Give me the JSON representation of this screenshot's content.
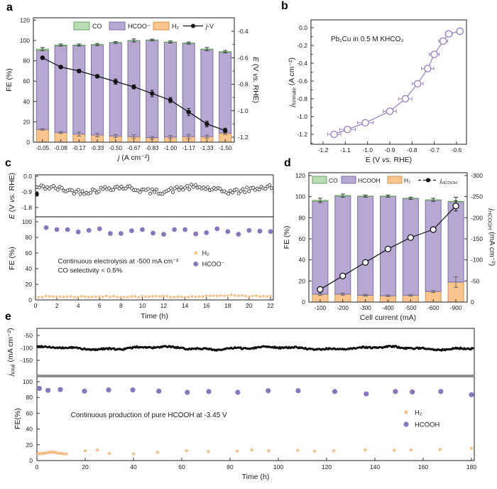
{
  "panel_labels": {
    "a": "a",
    "b": "b",
    "c": "c",
    "d": "d",
    "e": "e"
  },
  "colors": {
    "co_fill": "#b8ddb4",
    "co_edge": "#67a567",
    "formate_fill": "#b6a8d3",
    "formate_edge": "#7d6cab",
    "h2_fill": "#f9c58d",
    "h2_edge": "#d2944f",
    "black": "#141414",
    "purple_line": "#9c85c7",
    "dot_purple": "#8877bf",
    "star_fill": "#f4bc81",
    "scatter_stroke": "#3a3a3a"
  },
  "chart_data": [
    {
      "id": "a",
      "type": "bar+line",
      "categories": [
        "-0.05",
        "-0.08",
        "-0.17",
        "-0.33",
        "-0.50",
        "-0.67",
        "-0.83",
        "-1.00",
        "-1.17",
        "-1.33",
        "-1.50"
      ],
      "xlabel": "*j* (A cm⁻²)",
      "ylabel": "FE (%)",
      "ylabel_right": "*E* (V *vs.* RHE)",
      "ylim": [
        0,
        120
      ],
      "yticks": [
        "0",
        "20",
        "40",
        "60",
        "80",
        "100",
        "120"
      ],
      "yticks_right": [
        "-0.4",
        "-0.6",
        "-0.8",
        "-1.0",
        "-1.2"
      ],
      "legend": [
        "CO",
        "HCOO⁻",
        "H₂",
        "*j*-V"
      ],
      "h2": [
        12.5,
        9.5,
        8,
        7,
        6,
        5.5,
        4.5,
        5,
        5.5,
        5.5,
        9
      ],
      "h2_err": [
        0.8,
        1,
        2,
        1.8,
        1.5,
        1.8,
        1.2,
        1.5,
        2,
        1.5,
        1.5
      ],
      "co": [
        1.2,
        0.8,
        0.5,
        0.4,
        0.3,
        0.3,
        0.3,
        0.3,
        0.3,
        0.4,
        0.5
      ],
      "total": [
        91.5,
        95.5,
        95.5,
        96,
        98,
        100,
        100.5,
        98.5,
        97.5,
        91.5,
        89
      ],
      "total_err": [
        1.5,
        1,
        1,
        1,
        0.8,
        1.5,
        0.8,
        1,
        1,
        1.5,
        1.2
      ],
      "jv_E": [
        -0.6,
        -0.67,
        -0.7,
        -0.74,
        -0.78,
        -0.82,
        -0.87,
        -0.92,
        -1.01,
        -1.1,
        -1.15
      ],
      "jv_err": [
        0.01,
        0.01,
        0.012,
        0.012,
        0.02,
        0.015,
        0.025,
        0.02,
        0.027,
        0.022,
        0.018
      ]
    },
    {
      "id": "b",
      "type": "scatter-line",
      "annotation": "Pb₁Cu in 0.5 M KHCO₃",
      "xlabel": "E (V *vs.* RHE)",
      "ylabel": "*j*_formate_ (A cm⁻²)",
      "xlim": [
        -1.25,
        -0.56
      ],
      "ylim": [
        -1.31,
        0.09
      ],
      "xticks": [
        "-1.2",
        "-1.1",
        "-1.0",
        "-0.9",
        "-0.8",
        "-0.7",
        "-0.6"
      ],
      "yticks": [
        "0.0",
        "-0.2",
        "-0.4",
        "-0.6",
        "-0.8",
        "-1.0",
        "-1.2"
      ],
      "x": [
        -0.585,
        -0.635,
        -0.66,
        -0.7,
        -0.73,
        -0.775,
        -0.83,
        -0.9,
        -1.01,
        -1.09,
        -1.15
      ],
      "y": [
        -0.04,
        -0.07,
        -0.15,
        -0.3,
        -0.46,
        -0.63,
        -0.8,
        -0.94,
        -1.07,
        -1.145,
        -1.2
      ],
      "xerr": [
        0.012,
        0.015,
        0.02,
        0.022,
        0.028,
        0.025,
        0.03,
        0.03,
        0.035,
        0.035,
        0.03
      ]
    },
    {
      "id": "c",
      "type": "stability",
      "xlabel": "Time (h)",
      "xlim": [
        0,
        22.3
      ],
      "xticks": [
        "0",
        "2",
        "4",
        "6",
        "8",
        "10",
        "12",
        "14",
        "16",
        "18",
        "20",
        "22"
      ],
      "top": {
        "ylabel": "*E* (V *vs.* RHE)",
        "yticks": [
          "0.0",
          "-0.9",
          "-1.8"
        ],
        "ylim": [
          0.1,
          -2.4
        ],
        "scatter": {
          "n": 115,
          "t_start": 0.15,
          "t_end": 22.1,
          "mean": -0.76,
          "noise": 0.3,
          "wave": 0.13,
          "seed": 42
        },
        "first_point": {
          "t": 0.15,
          "E": -1.02,
          "err": 0.12
        }
      },
      "bottom": {
        "ylabel": "FE (%)",
        "yticks": [
          "0",
          "20",
          "40",
          "60",
          "80",
          "100"
        ],
        "ylim": [
          0,
          106
        ],
        "annotation": [
          "Continuous electrolysis at -500 mA cm⁻²",
          "CO selectivity < 0.5%"
        ],
        "legend": [
          "H₂",
          "HCOO⁻"
        ],
        "hcoo_t": [
          1,
          2,
          3,
          4,
          5,
          6,
          7,
          8,
          9,
          10,
          11,
          12,
          13,
          14,
          15,
          16,
          17,
          18,
          19,
          20,
          21,
          22
        ],
        "hcoo_fe": [
          92.5,
          90,
          90,
          87,
          89,
          91,
          85,
          85,
          88.5,
          90,
          85.5,
          84,
          90,
          90,
          84.5,
          86,
          91,
          87.5,
          84,
          89,
          88,
          87.5
        ],
        "h2": {
          "n": 66,
          "t_start": 0.3,
          "t_end": 22,
          "base": 4.2,
          "noise": 1.6,
          "bump_t": 18.3,
          "bump": 1.8,
          "seed": 7
        }
      }
    },
    {
      "id": "d",
      "type": "bar+line",
      "categories": [
        "-100",
        "-200",
        "-300",
        "-400",
        "-500",
        "-600",
        "-900"
      ],
      "xlabel": "Cell current (mA)",
      "ylabel": "FE (%)",
      "ylabel_right": "*j*_HCOOH_ (mA cm⁻²)",
      "ylim": [
        0,
        120
      ],
      "ylim_right": [
        0,
        -300
      ],
      "yticks": [
        "0",
        "20",
        "40",
        "60",
        "80",
        "100",
        "120"
      ],
      "yticks_right": [
        "0",
        "-50",
        "-100",
        "-150",
        "-200",
        "-250",
        "-300"
      ],
      "legend": [
        "CO",
        "HCOOH",
        "H₂",
        "*j*_HCOOH_"
      ],
      "h2": [
        7.5,
        7.5,
        6.5,
        6,
        6.5,
        10,
        19
      ],
      "h2_err": [
        1,
        1,
        0.8,
        0.8,
        0.8,
        1,
        5
      ],
      "co": [
        1,
        0.5,
        0.3,
        0.3,
        0.3,
        0.4,
        0.5
      ],
      "total": [
        96.5,
        101,
        100.5,
        100.5,
        98.5,
        97,
        95.5
      ],
      "total_err": [
        2,
        1.5,
        1,
        1,
        1,
        1.5,
        4
      ],
      "j": [
        -30,
        -62,
        -94,
        -126,
        -153,
        -172,
        -228
      ],
      "j_err": [
        4,
        4,
        4,
        4,
        5,
        6,
        12
      ]
    },
    {
      "id": "e",
      "type": "stability",
      "xlabel": "Time (h)",
      "xlim": [
        0,
        181
      ],
      "xticks": [
        "0",
        "20",
        "40",
        "60",
        "80",
        "100",
        "120",
        "140",
        "160",
        "180"
      ],
      "top": {
        "ylabel": "*j*_total_ (mA cm⁻²)",
        "yticks": [
          "-50",
          "-100",
          "-150"
        ],
        "ylim": [
          -20,
          -210
        ],
        "line": {
          "n": 460,
          "t_end": 181,
          "base": -101,
          "noise": 6.5,
          "seed": 99
        }
      },
      "bottom": {
        "ylabel": "FE(%)",
        "yticks": [
          "0",
          "20",
          "40",
          "60",
          "80",
          "100"
        ],
        "ylim": [
          0,
          106
        ],
        "annotation": [
          "Continuous production of pure HCOOH at -3.45 V"
        ],
        "legend": [
          "H₂",
          "HCOOH"
        ],
        "hcooh": [
          [
            1,
            91.5
          ],
          [
            4.6,
            89
          ],
          [
            9.7,
            90
          ],
          [
            19.7,
            88
          ],
          [
            29.7,
            89.5
          ],
          [
            39.7,
            89.5
          ],
          [
            50.5,
            88
          ],
          [
            62.3,
            86.5
          ],
          [
            71.2,
            87.5
          ],
          [
            83.2,
            86.5
          ],
          [
            95.8,
            88.5
          ],
          [
            108.2,
            88.5
          ],
          [
            123.4,
            87.5
          ],
          [
            136.4,
            84.5
          ],
          [
            148.5,
            87.5
          ],
          [
            155.5,
            87
          ],
          [
            167.3,
            87.5
          ],
          [
            180,
            83.5
          ]
        ],
        "h2": [
          [
            0.5,
            9
          ],
          [
            1.2,
            8.5
          ],
          [
            2,
            9.5
          ],
          [
            2.8,
            9
          ],
          [
            3.5,
            9.5
          ],
          [
            4.2,
            10
          ],
          [
            5,
            10.5
          ],
          [
            5.8,
            10.5
          ],
          [
            6.5,
            11
          ],
          [
            7.3,
            10.5
          ],
          [
            8,
            10
          ],
          [
            8.8,
            9.5
          ],
          [
            9.6,
            9
          ],
          [
            10.4,
            9
          ],
          [
            11.2,
            8.5
          ],
          [
            12.2,
            8.5
          ],
          [
            20,
            12.5
          ],
          [
            25,
            13.5
          ],
          [
            30,
            9
          ],
          [
            40,
            8.5
          ],
          [
            50,
            10.5
          ],
          [
            62,
            12.5
          ],
          [
            71,
            11.5
          ],
          [
            83,
            12
          ],
          [
            89,
            13.5
          ],
          [
            96,
            12.5
          ],
          [
            108,
            13
          ],
          [
            115,
            12
          ],
          [
            123,
            12.5
          ],
          [
            136,
            13.5
          ],
          [
            148,
            13
          ],
          [
            155,
            13.5
          ],
          [
            167,
            14
          ],
          [
            180,
            15.5
          ]
        ]
      }
    }
  ]
}
